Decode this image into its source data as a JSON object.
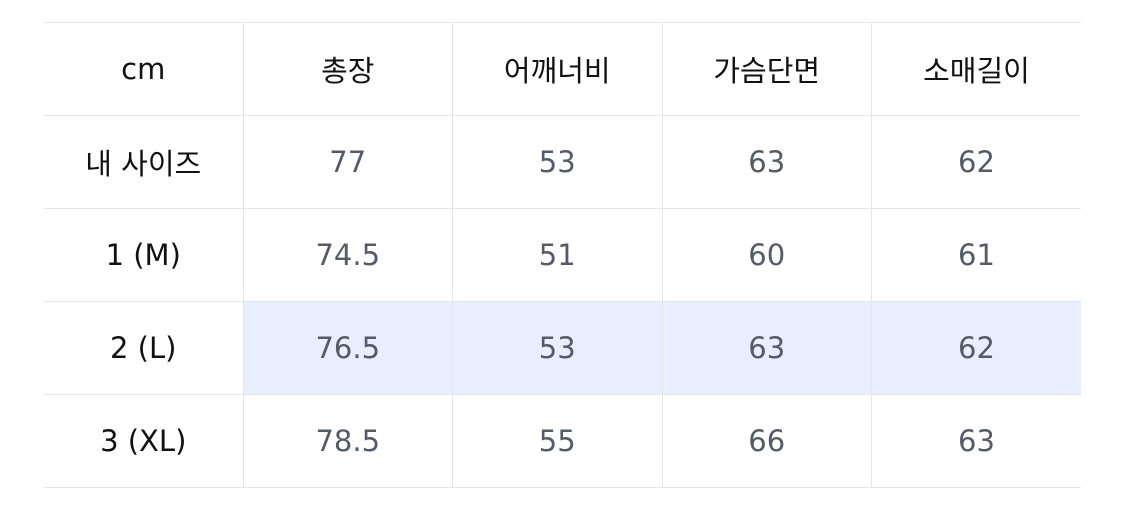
{
  "table": {
    "headers": [
      "cm",
      "총장",
      "어깨너비",
      "가슴단면",
      "소매길이"
    ],
    "rows": [
      {
        "label": "내 사이즈",
        "values": [
          "77",
          "53",
          "63",
          "62"
        ]
      },
      {
        "label": "1 (M)",
        "values": [
          "74.5",
          "51",
          "60",
          "61"
        ]
      },
      {
        "label": "2 (L)",
        "values": [
          "76.5",
          "53",
          "63",
          "62"
        ],
        "highlighted": true
      },
      {
        "label": "3 (XL)",
        "values": [
          "78.5",
          "55",
          "66",
          "63"
        ]
      }
    ]
  },
  "colors": {
    "highlight": "#e8eefd",
    "border": "#e6e6e9",
    "value_text": "#555b66"
  }
}
